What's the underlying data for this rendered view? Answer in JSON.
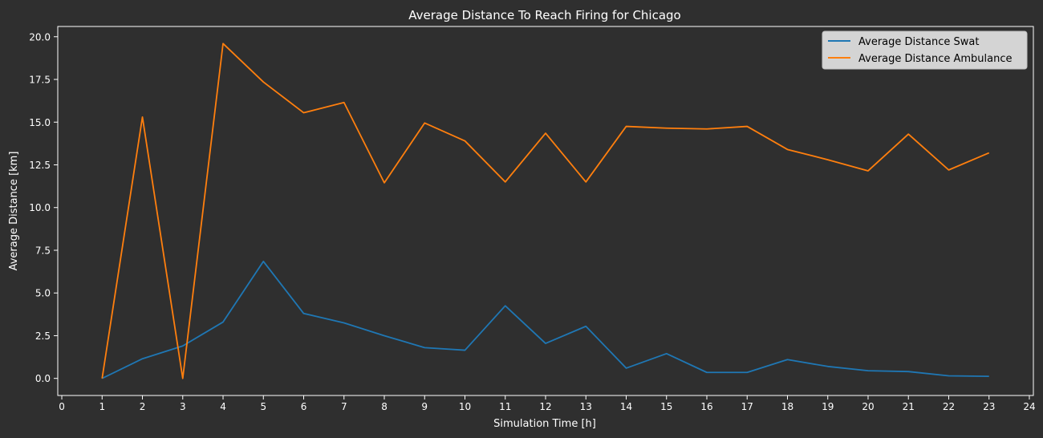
{
  "chart_data": {
    "type": "line",
    "title": "Average Distance To Reach Firing for Chicago",
    "xlabel": "Simulation Time [h]",
    "ylabel": "Average Distance [km]",
    "xlim": [
      -0.1,
      24.1
    ],
    "ylim": [
      -1.0,
      20.6
    ],
    "xticks": [
      "0",
      "1",
      "2",
      "3",
      "4",
      "5",
      "6",
      "7",
      "8",
      "9",
      "10",
      "11",
      "12",
      "13",
      "14",
      "15",
      "16",
      "17",
      "18",
      "19",
      "20",
      "21",
      "22",
      "23",
      "24"
    ],
    "yticks": [
      "0.0",
      "2.5",
      "5.0",
      "7.5",
      "10.0",
      "12.5",
      "15.0",
      "17.5",
      "20.0"
    ],
    "grid": false,
    "legend_position": "top-right",
    "x": [
      1,
      2,
      3,
      4,
      5,
      6,
      7,
      8,
      9,
      10,
      11,
      12,
      13,
      14,
      15,
      16,
      17,
      18,
      19,
      20,
      21,
      22,
      23
    ],
    "series": [
      {
        "name": "Average Distance Swat",
        "color": "#1f77b4",
        "values": [
          0.0,
          1.15,
          1.9,
          3.3,
          6.85,
          3.8,
          3.25,
          2.5,
          1.8,
          1.65,
          4.25,
          2.05,
          3.05,
          0.6,
          1.45,
          0.35,
          0.35,
          1.1,
          0.7,
          0.45,
          0.4,
          0.15,
          0.12
        ]
      },
      {
        "name": "Average Distance Ambulance",
        "color": "#ff7f0e",
        "values": [
          0.0,
          15.3,
          0.0,
          19.6,
          17.35,
          15.55,
          16.15,
          11.45,
          14.95,
          13.9,
          11.5,
          14.35,
          11.5,
          14.75,
          14.65,
          14.6,
          14.75,
          13.4,
          12.8,
          12.15,
          14.3,
          12.2,
          13.2
        ]
      }
    ]
  }
}
